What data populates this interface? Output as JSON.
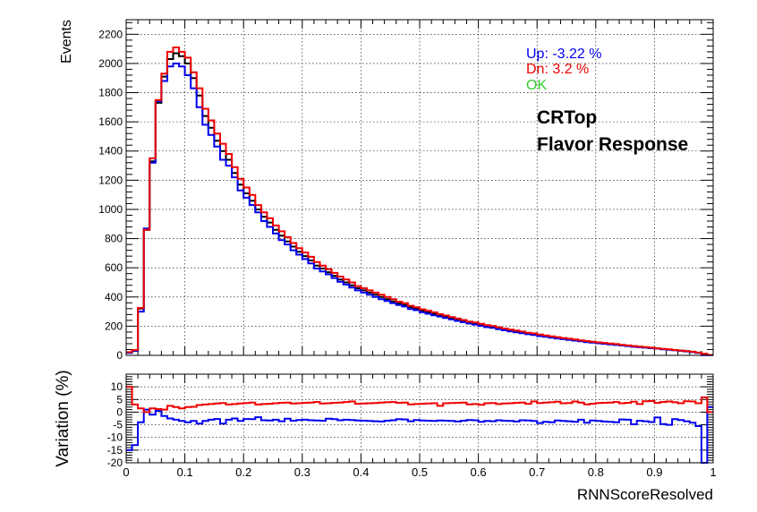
{
  "colors": {
    "nominal": "#000000",
    "up": "#0000ee",
    "down": "#ee0000",
    "ok": "#33cc33"
  },
  "legend": {
    "up": "Up: -3.22 %",
    "down": "Dn: 3.2 %",
    "ok": "OK"
  },
  "annotation": {
    "line1": "CRTop",
    "line2": "Flavor Response"
  },
  "chart_data": [
    {
      "type": "line",
      "panel": "main",
      "step": true,
      "ylabel": "Events",
      "xlim": [
        0,
        1
      ],
      "ylim": [
        0,
        2300
      ],
      "yticks": [
        0,
        200,
        400,
        600,
        800,
        1000,
        1200,
        1400,
        1600,
        1800,
        2000,
        2200
      ],
      "grid": true,
      "legend_position": "top-right",
      "bin_width": 0.01,
      "x": [
        0.005,
        0.015,
        0.025,
        0.035,
        0.045,
        0.055,
        0.065,
        0.075,
        0.085,
        0.095,
        0.105,
        0.115,
        0.125,
        0.135,
        0.145,
        0.155,
        0.165,
        0.175,
        0.185,
        0.195,
        0.205,
        0.215,
        0.225,
        0.235,
        0.245,
        0.255,
        0.265,
        0.275,
        0.285,
        0.295,
        0.305,
        0.315,
        0.325,
        0.335,
        0.345,
        0.355,
        0.365,
        0.375,
        0.385,
        0.395,
        0.405,
        0.415,
        0.425,
        0.435,
        0.445,
        0.455,
        0.465,
        0.475,
        0.485,
        0.495,
        0.505,
        0.515,
        0.525,
        0.535,
        0.545,
        0.555,
        0.565,
        0.575,
        0.585,
        0.595,
        0.605,
        0.615,
        0.625,
        0.635,
        0.645,
        0.655,
        0.665,
        0.675,
        0.685,
        0.695,
        0.705,
        0.715,
        0.725,
        0.735,
        0.745,
        0.755,
        0.765,
        0.775,
        0.785,
        0.795,
        0.805,
        0.815,
        0.825,
        0.835,
        0.845,
        0.855,
        0.865,
        0.875,
        0.885,
        0.895,
        0.905,
        0.915,
        0.925,
        0.935,
        0.945,
        0.955,
        0.965,
        0.975,
        0.985,
        0.995
      ],
      "series": [
        {
          "name": "Nominal",
          "color": "#000000",
          "values": [
            20,
            35,
            320,
            860,
            1330,
            1730,
            1910,
            2030,
            2070,
            2050,
            2000,
            1900,
            1780,
            1640,
            1560,
            1470,
            1400,
            1340,
            1250,
            1170,
            1110,
            1060,
            1000,
            950,
            910,
            860,
            820,
            780,
            745,
            710,
            680,
            650,
            615,
            595,
            570,
            545,
            520,
            500,
            480,
            460,
            445,
            430,
            415,
            400,
            385,
            370,
            355,
            345,
            330,
            320,
            305,
            295,
            285,
            275,
            265,
            255,
            245,
            235,
            225,
            218,
            210,
            200,
            195,
            185,
            178,
            170,
            164,
            157,
            150,
            144,
            138,
            132,
            126,
            120,
            115,
            110,
            105,
            100,
            95,
            90,
            86,
            82,
            78,
            74,
            70,
            66,
            62,
            58,
            55,
            51,
            47,
            43,
            40,
            36,
            32,
            28,
            24,
            18,
            10,
            3
          ]
        },
        {
          "name": "Up",
          "color": "#0000ee",
          "values": [
            17,
            30,
            300,
            870,
            1320,
            1740,
            1880,
            1980,
            2000,
            1980,
            1920,
            1830,
            1700,
            1580,
            1510,
            1430,
            1340,
            1300,
            1220,
            1130,
            1080,
            1030,
            980,
            920,
            880,
            835,
            790,
            760,
            720,
            690,
            660,
            630,
            595,
            575,
            555,
            530,
            505,
            485,
            465,
            445,
            430,
            415,
            400,
            385,
            372,
            358,
            345,
            335,
            318,
            310,
            295,
            285,
            275,
            266,
            256,
            246,
            236,
            227,
            218,
            211,
            202,
            193,
            188,
            179,
            172,
            164,
            158,
            152,
            145,
            139,
            132,
            127,
            121,
            116,
            111,
            106,
            101,
            97,
            91,
            87,
            83,
            79,
            75,
            71,
            68,
            64,
            59,
            56,
            53,
            49,
            46,
            41,
            38,
            35,
            31,
            27,
            23,
            17,
            2,
            2
          ]
        },
        {
          "name": "Down",
          "color": "#ee0000",
          "values": [
            22,
            36,
            325,
            860,
            1350,
            1750,
            1930,
            2080,
            2110,
            2080,
            2040,
            1940,
            1830,
            1690,
            1610,
            1520,
            1450,
            1380,
            1290,
            1210,
            1150,
            1100,
            1030,
            980,
            940,
            890,
            850,
            810,
            770,
            735,
            705,
            675,
            640,
            615,
            590,
            565,
            540,
            520,
            500,
            475,
            460,
            445,
            430,
            415,
            400,
            385,
            368,
            358,
            340,
            330,
            315,
            305,
            295,
            282,
            273,
            262,
            252,
            242,
            232,
            225,
            216,
            207,
            202,
            192,
            184,
            176,
            170,
            163,
            155,
            150,
            143,
            136,
            130,
            125,
            119,
            114,
            109,
            103,
            98,
            93,
            89,
            85,
            81,
            77,
            72,
            68,
            64,
            60,
            57,
            53,
            48,
            45,
            42,
            37,
            33,
            29,
            25,
            19,
            11,
            3
          ]
        }
      ]
    },
    {
      "type": "line",
      "panel": "ratio",
      "step": true,
      "xlabel": "RNNScoreResolved",
      "ylabel": "Variation (%)",
      "xlim": [
        0,
        1
      ],
      "ylim": [
        -20,
        15
      ],
      "yticks": [
        -20,
        -15,
        -10,
        -5,
        0,
        5,
        10
      ],
      "xticks": [
        0,
        0.1,
        0.2,
        0.3,
        0.4,
        0.5,
        0.6,
        0.7,
        0.8,
        0.9,
        1
      ],
      "xtick_labels": [
        "0",
        "0.1",
        "0.2",
        "0.3",
        "0.4",
        "0.5",
        "0.6",
        "0.7",
        "0.8",
        "0.9",
        "1"
      ],
      "grid": true,
      "bin_width": 0.01,
      "series": [
        {
          "name": "Up",
          "color": "#0000ee",
          "values": [
            -15,
            -13,
            -4,
            1,
            -1,
            0.5,
            -1.5,
            -2.5,
            -3,
            -3.5,
            -4,
            -3.5,
            -4.5,
            -3.5,
            -3,
            -2.7,
            -4.5,
            -3,
            -2.5,
            -3.5,
            -2.7,
            -2.8,
            -2,
            -3.2,
            -3.3,
            -3,
            -3.6,
            -2.6,
            -3.4,
            -3.1,
            -3,
            -3.2,
            -3.3,
            -3.4,
            -2.6,
            -2.8,
            -3.2,
            -3,
            -3.1,
            -3.3,
            -3.4,
            -3.5,
            -3.6,
            -3.7,
            -3.4,
            -3.2,
            -2.8,
            -2.9,
            -3.6,
            -3.1,
            -3.3,
            -3.4,
            -3.5,
            -3.3,
            -3.4,
            -3.5,
            -3.7,
            -3.4,
            -3.1,
            -3.2,
            -3.8,
            -3.5,
            -3.6,
            -3.2,
            -3.4,
            -3.5,
            -3.7,
            -3.2,
            -3.3,
            -3.5,
            -4.3,
            -3.8,
            -4,
            -3.3,
            -3.5,
            -3.6,
            -3.8,
            -3,
            -4.2,
            -3.3,
            -3.5,
            -3.7,
            -3.8,
            -4,
            -2.9,
            -3,
            -4.8,
            -3.4,
            -3.6,
            -3.9,
            -2.1,
            -4.7,
            -5,
            -2.8,
            -3.1,
            -3.6,
            -4.2,
            -5.5,
            -20,
            2
          ]
        },
        {
          "name": "Down",
          "color": "#ee0000",
          "values": [
            10,
            3,
            1.5,
            0,
            1.5,
            1.2,
            1,
            2.5,
            2,
            1.5,
            2,
            2.1,
            2.8,
            3,
            3.2,
            3.4,
            3.6,
            3,
            3.2,
            3.4,
            3.6,
            3.8,
            3,
            3.2,
            3.3,
            3.5,
            3.7,
            3.8,
            3.4,
            3.5,
            3.7,
            3.8,
            4,
            3.4,
            3.5,
            3.7,
            3.8,
            4,
            4.2,
            3.3,
            3.4,
            3.5,
            3.6,
            3.8,
            3.9,
            4,
            3.7,
            3.8,
            3.1,
            3.2,
            3.3,
            3.4,
            3.5,
            2.5,
            3.5,
            3.6,
            3.7,
            3.8,
            3.1,
            3.2,
            2.9,
            3.5,
            3.6,
            3.2,
            3.4,
            3.5,
            3.7,
            3.8,
            3.3,
            4.2,
            3.6,
            3.8,
            3.9,
            4.1,
            3.5,
            3.6,
            4.2,
            3.8,
            3.1,
            3.3,
            3.6,
            3.7,
            3.8,
            4,
            3.5,
            3.7,
            4.1,
            3.2,
            4.3,
            4.4,
            3.7,
            4,
            4.2,
            3.9,
            3.5,
            4.3,
            4.2,
            3.5,
            5.8,
            0
          ]
        }
      ]
    }
  ]
}
